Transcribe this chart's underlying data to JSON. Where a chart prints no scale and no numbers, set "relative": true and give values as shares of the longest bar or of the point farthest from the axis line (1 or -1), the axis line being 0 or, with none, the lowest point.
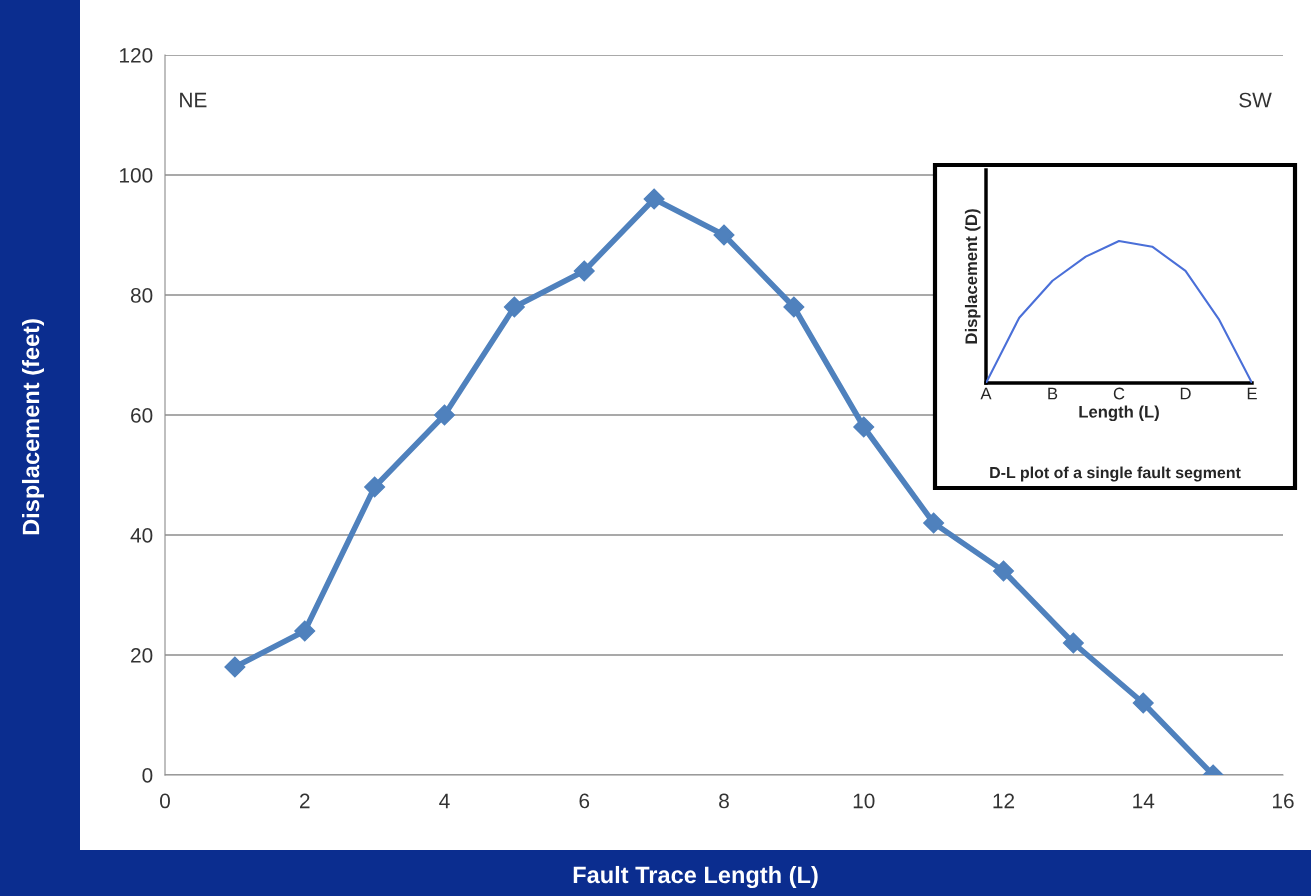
{
  "chart_data": [
    {
      "type": "line",
      "xlabel": "Fault Trace Length (L)",
      "ylabel": "Displacement (feet)",
      "x": [
        1,
        2,
        3,
        4,
        5,
        6,
        7,
        8,
        9,
        10,
        11,
        12,
        13,
        14,
        15
      ],
      "series": [
        {
          "color": "#4f81bd",
          "values": [
            18,
            24,
            48,
            60,
            78,
            84,
            96,
            90,
            78,
            58,
            42,
            34,
            22,
            12,
            0
          ]
        }
      ],
      "xlim": [
        0,
        16
      ],
      "xticks": [
        0,
        2,
        4,
        6,
        8,
        10,
        12,
        14,
        16
      ],
      "ylim": [
        0,
        120
      ],
      "yticks": [
        0,
        20,
        40,
        60,
        80,
        100,
        120
      ],
      "grid": "y",
      "marker": "diamond",
      "line_style": "solid",
      "annotations": [
        "NE",
        "SW"
      ]
    },
    {
      "type": "line",
      "title": "D-L plot of a single fault segment",
      "xlabel": "Length (L)",
      "ylabel": "Displacement (D)",
      "relative": true,
      "categories": [
        "A",
        null,
        "B",
        null,
        "C",
        null,
        "D",
        null,
        "E"
      ],
      "series": [
        {
          "color": "#4a6fd8",
          "values": [
            0,
            0.46,
            0.72,
            0.89,
            1,
            0.96,
            0.79,
            0.45,
            0
          ]
        }
      ],
      "tick_labels": "x",
      "marker": "none",
      "line_style": "solid"
    }
  ]
}
